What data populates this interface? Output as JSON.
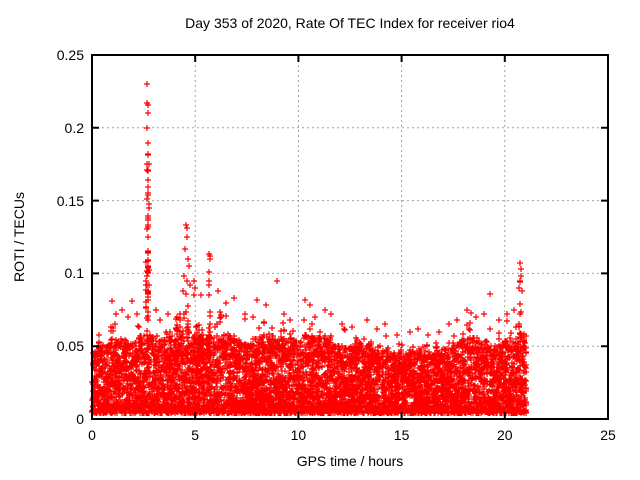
{
  "page": {
    "background": "#ffffff"
  },
  "chart_data": {
    "type": "scatter",
    "title": "Day 353 of 2020, Rate Of TEC Index for receiver rio4",
    "xlabel": "GPS time / hours",
    "ylabel": "ROTI / TECUs",
    "xlim": [
      0,
      25
    ],
    "ylim": [
      0,
      0.25
    ],
    "xticks": [
      0,
      5,
      10,
      15,
      20,
      25
    ],
    "xtick_labels": [
      "0",
      "5",
      "10",
      "15",
      "20",
      "25"
    ],
    "yticks": [
      0,
      0.05,
      0.1,
      0.15,
      0.2,
      0.25
    ],
    "ytick_labels": [
      "0",
      "0.05",
      "0.1",
      "0.15",
      "0.2",
      "0.25"
    ],
    "grid": {
      "visible": true,
      "style": "dashed",
      "color": "#a0a0a0"
    },
    "legend": "none",
    "marker": {
      "shape": "plus",
      "color": "#ff0000",
      "size": 7
    },
    "axis_color": "#000000",
    "series_name": "ROTI",
    "data_summary": {
      "x_start_hour": 0.0,
      "x_end_hour": 21.05,
      "baseline_band_min": 0.004,
      "baseline_band_typical_max": 0.05,
      "max_value": 0.23,
      "max_at_hour": 2.66
    },
    "band_envelope": [
      [
        0,
        0.048
      ],
      [
        0.5,
        0.05
      ],
      [
        1,
        0.055
      ],
      [
        1.5,
        0.055
      ],
      [
        2,
        0.052
      ],
      [
        2.5,
        0.06
      ],
      [
        3,
        0.058
      ],
      [
        3.5,
        0.055
      ],
      [
        4,
        0.058
      ],
      [
        4.5,
        0.062
      ],
      [
        5,
        0.06
      ],
      [
        5.5,
        0.055
      ],
      [
        6,
        0.056
      ],
      [
        6.5,
        0.058
      ],
      [
        7,
        0.054
      ],
      [
        7.5,
        0.052
      ],
      [
        8,
        0.056
      ],
      [
        8.5,
        0.058
      ],
      [
        9,
        0.058
      ],
      [
        9.5,
        0.054
      ],
      [
        10,
        0.055
      ],
      [
        10.5,
        0.058
      ],
      [
        11,
        0.056
      ],
      [
        11.5,
        0.055
      ],
      [
        12,
        0.05
      ],
      [
        12.5,
        0.05
      ],
      [
        13,
        0.053
      ],
      [
        13.5,
        0.05
      ],
      [
        14,
        0.05
      ],
      [
        14.5,
        0.046
      ],
      [
        15,
        0.044
      ],
      [
        15.5,
        0.048
      ],
      [
        16,
        0.048
      ],
      [
        16.5,
        0.045
      ],
      [
        17,
        0.048
      ],
      [
        17.5,
        0.05
      ],
      [
        18,
        0.056
      ],
      [
        18.5,
        0.056
      ],
      [
        19,
        0.052
      ],
      [
        19.5,
        0.05
      ],
      [
        20,
        0.054
      ],
      [
        20.5,
        0.058
      ],
      [
        21,
        0.06
      ],
      [
        21.05,
        0.058
      ]
    ],
    "spikes": [
      [
        0.97,
        0.081
      ],
      [
        1.15,
        0.072
      ],
      [
        1.45,
        0.075
      ],
      [
        1.75,
        0.07
      ],
      [
        1.94,
        0.081
      ],
      [
        2.2,
        0.072
      ],
      [
        2.6,
        0.095
      ],
      [
        2.63,
        0.108
      ],
      [
        2.66,
        0.23
      ],
      [
        2.68,
        0.217
      ],
      [
        2.7,
        0.216
      ],
      [
        2.69,
        0.21
      ],
      [
        2.67,
        0.2
      ],
      [
        2.71,
        0.181
      ],
      [
        2.74,
        0.175
      ],
      [
        2.72,
        0.171
      ],
      [
        2.73,
        0.17
      ],
      [
        2.71,
        0.164
      ],
      [
        2.72,
        0.155
      ],
      [
        2.73,
        0.154
      ],
      [
        2.75,
        0.148
      ],
      [
        2.72,
        0.137
      ],
      [
        2.72,
        0.125
      ],
      [
        2.7,
        0.104
      ],
      [
        3.1,
        0.075
      ],
      [
        3.3,
        0.068
      ],
      [
        3.7,
        0.072
      ],
      [
        4.1,
        0.07
      ],
      [
        4.4,
        0.088
      ],
      [
        4.45,
        0.098
      ],
      [
        4.5,
        0.117
      ],
      [
        4.55,
        0.133
      ],
      [
        4.58,
        0.131
      ],
      [
        4.6,
        0.125
      ],
      [
        4.65,
        0.11
      ],
      [
        4.7,
        0.105
      ],
      [
        4.75,
        0.092
      ],
      [
        4.95,
        0.095
      ],
      [
        5.0,
        0.09
      ],
      [
        5.3,
        0.085
      ],
      [
        5.68,
        0.113
      ],
      [
        5.7,
        0.11
      ],
      [
        5.72,
        0.112
      ],
      [
        6.1,
        0.088
      ],
      [
        6.5,
        0.08
      ],
      [
        6.9,
        0.083
      ],
      [
        7.4,
        0.072
      ],
      [
        7.8,
        0.07
      ],
      [
        8.0,
        0.082
      ],
      [
        8.45,
        0.078
      ],
      [
        8.96,
        0.095
      ],
      [
        9.3,
        0.072
      ],
      [
        9.6,
        0.068
      ],
      [
        10.3,
        0.082
      ],
      [
        10.55,
        0.078
      ],
      [
        10.8,
        0.07
      ],
      [
        11.3,
        0.075
      ],
      [
        11.6,
        0.072
      ],
      [
        12.1,
        0.065
      ],
      [
        12.6,
        0.063
      ],
      [
        13.3,
        0.068
      ],
      [
        13.8,
        0.062
      ],
      [
        14.2,
        0.065
      ],
      [
        14.8,
        0.058
      ],
      [
        15.4,
        0.06
      ],
      [
        15.8,
        0.062
      ],
      [
        16.3,
        0.058
      ],
      [
        16.8,
        0.06
      ],
      [
        17.3,
        0.065
      ],
      [
        17.7,
        0.068
      ],
      [
        18.15,
        0.075
      ],
      [
        18.35,
        0.073
      ],
      [
        18.6,
        0.07
      ],
      [
        19.0,
        0.072
      ],
      [
        19.3,
        0.086
      ],
      [
        19.7,
        0.068
      ],
      [
        20.1,
        0.072
      ],
      [
        20.45,
        0.075
      ],
      [
        20.7,
        0.09
      ],
      [
        20.72,
        0.095
      ],
      [
        20.75,
        0.107
      ],
      [
        20.78,
        0.103
      ],
      [
        20.8,
        0.098
      ],
      [
        20.85,
        0.088
      ]
    ],
    "render": {
      "seed": 1218353,
      "baseline_points": 6500,
      "fringe_columns": 180
    }
  }
}
